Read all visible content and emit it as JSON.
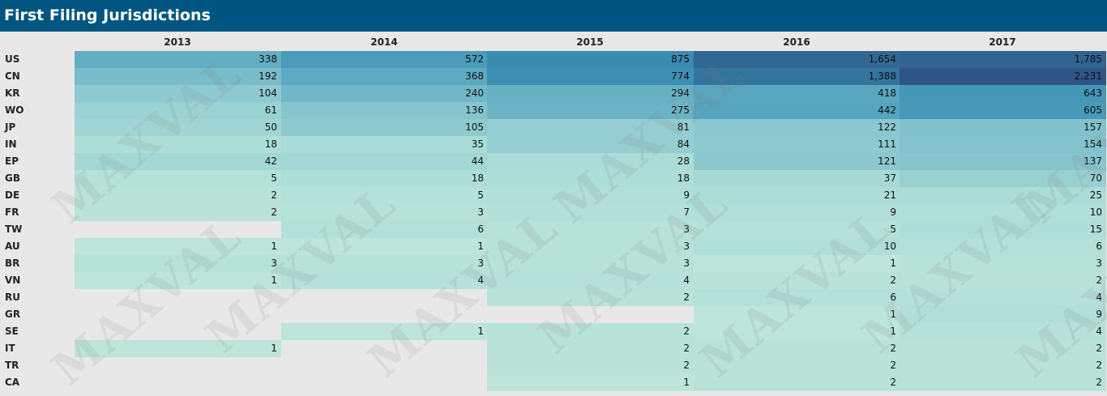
{
  "title": "First Filing Jurisdictions",
  "watermark_text": "MAXVAL",
  "chart_data": {
    "type": "heatmap",
    "title": "First Filing Jurisdictions",
    "columns": [
      "2013",
      "2014",
      "2015",
      "2016",
      "2017"
    ],
    "rows": [
      "US",
      "CN",
      "KR",
      "WO",
      "JP",
      "IN",
      "EP",
      "GB",
      "DE",
      "FR",
      "TW",
      "AU",
      "BR",
      "VN",
      "RU",
      "GR",
      "SE",
      "IT",
      "TR",
      "CA"
    ],
    "values": [
      [
        338,
        572,
        875,
        1654,
        1785
      ],
      [
        192,
        368,
        774,
        1388,
        2231
      ],
      [
        104,
        240,
        294,
        418,
        643
      ],
      [
        61,
        136,
        275,
        442,
        605
      ],
      [
        50,
        105,
        81,
        122,
        157
      ],
      [
        18,
        35,
        84,
        111,
        154
      ],
      [
        42,
        44,
        28,
        121,
        137
      ],
      [
        5,
        18,
        18,
        37,
        70
      ],
      [
        2,
        5,
        9,
        21,
        25
      ],
      [
        2,
        3,
        7,
        9,
        10
      ],
      [
        null,
        6,
        3,
        5,
        15
      ],
      [
        1,
        1,
        3,
        10,
        6
      ],
      [
        3,
        3,
        3,
        1,
        3
      ],
      [
        1,
        4,
        4,
        2,
        2
      ],
      [
        null,
        null,
        2,
        6,
        4
      ],
      [
        null,
        null,
        null,
        1,
        9
      ],
      [
        null,
        1,
        2,
        1,
        4
      ],
      [
        1,
        null,
        2,
        2,
        2
      ],
      [
        null,
        null,
        2,
        2,
        2
      ],
      [
        null,
        null,
        1,
        2,
        2
      ]
    ],
    "color_scale": {
      "low": "#bde5d9",
      "high": "#2e5585",
      "empty": "#e8e8e8"
    }
  }
}
